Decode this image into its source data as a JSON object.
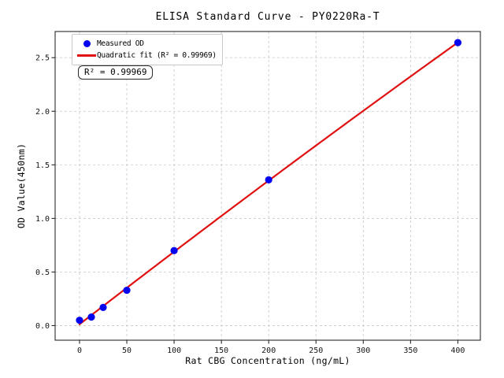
{
  "figure": {
    "background": "#ffffff"
  },
  "chart_data": {
    "type": "scatter",
    "title": "ELISA Standard Curve - PY0220Ra-T",
    "xlabel": "Rat CBG Concentration (ng/mL)",
    "ylabel": "OD Value(450nm)",
    "series": [
      {
        "name": "Measured OD",
        "type": "scatter",
        "x": [
          0,
          12.5,
          25,
          50,
          100,
          200,
          400
        ],
        "y": [
          0.05,
          0.08,
          0.17,
          0.33,
          0.7,
          1.36,
          2.64
        ]
      },
      {
        "name": "Quadratic fit (R² = 0.99969)",
        "type": "quadratic-fit",
        "r_squared": 0.99969,
        "x_range": [
          0,
          400
        ]
      }
    ],
    "xlim": [
      -25.8,
      423.8
    ],
    "ylim": [
      -0.136,
      2.744
    ],
    "xticks": {
      "values": [
        0,
        50,
        100,
        150,
        200,
        250,
        300,
        350,
        400
      ],
      "labels": [
        "0",
        "50",
        "100",
        "150",
        "200",
        "250",
        "300",
        "350",
        "400"
      ]
    },
    "yticks": {
      "values": [
        0,
        0.5,
        1.0,
        1.5,
        2.0,
        2.5
      ],
      "labels": [
        "0.0",
        "0.5",
        "1.0",
        "1.5",
        "2.0",
        "2.5"
      ]
    },
    "grid": true,
    "legend_position": "upper-left",
    "colors": {
      "points": "#0404f0",
      "fit_line": "#e01010",
      "grid": "#cdcdcd",
      "spine": "#2a2a2a",
      "tick_text": "#151515"
    }
  },
  "legend": {
    "items": [
      {
        "label": "Measured OD",
        "marker": "circle-marker-icon"
      },
      {
        "label": "Quadratic fit (R² = 0.99969)",
        "marker": "line-marker-icon"
      }
    ]
  },
  "annotation": {
    "r2_text": "R² = 0.99969"
  }
}
